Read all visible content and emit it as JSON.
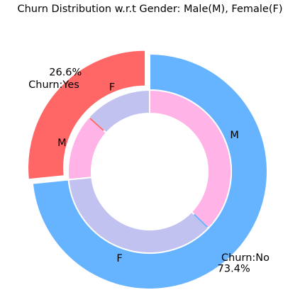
{
  "chart_data": {
    "type": "donut",
    "title": "Churn Distribution w.r.t Gender: Male(M), Female(F)",
    "outer_ring": {
      "slices": [
        {
          "label": "Churn:Yes",
          "value": 26.6,
          "value_label": "26.6%",
          "color": "#ff6666"
        },
        {
          "label": "Churn:No",
          "value": 73.4,
          "value_label": "73.4%",
          "color": "#66b3ff"
        }
      ]
    },
    "inner_ring": {
      "slices": [
        {
          "label": "F",
          "group": "Churn:Yes",
          "value": 13.4,
          "color": "#c2c2f0"
        },
        {
          "label": "M",
          "group": "Churn:Yes",
          "value": 13.2,
          "color": "#ffb3e6"
        },
        {
          "label": "F",
          "group": "Churn:No",
          "value": 36.2,
          "color": "#c2c2f0"
        },
        {
          "label": "M",
          "group": "Churn:No",
          "value": 37.2,
          "color": "#ffb3e6"
        }
      ]
    },
    "slice_edge_color": "#ffffff",
    "boundary_marker_color_yes": "#ff6666",
    "boundary_marker_color_no": "#66b3ff"
  }
}
